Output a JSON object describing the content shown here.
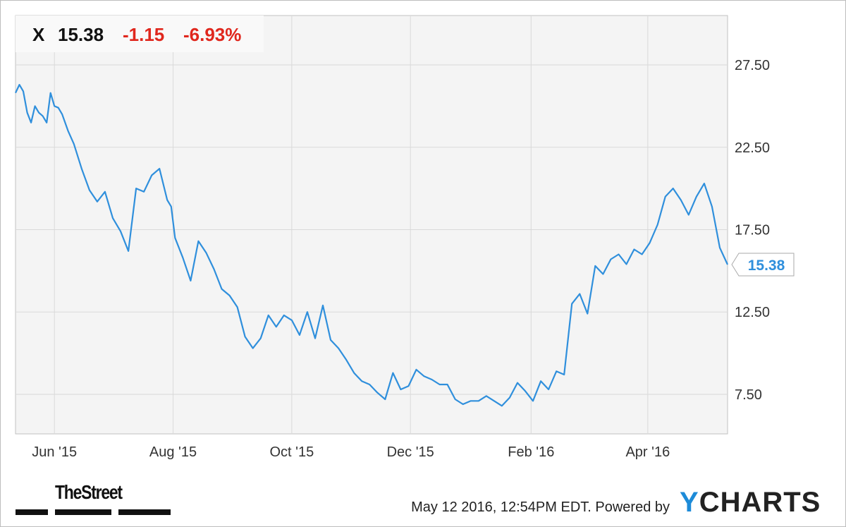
{
  "header": {
    "ticker": "X",
    "price": "15.38",
    "change": "-1.15",
    "change_pct": "-6.93%"
  },
  "chart_data": {
    "type": "line",
    "series": [
      {
        "color": "#2f8fdc",
        "last_value_label": "15.38",
        "x": [
          "2015-05-12",
          "2015-05-14",
          "2015-05-16",
          "2015-05-18",
          "2015-05-20",
          "2015-05-22",
          "2015-05-24",
          "2015-05-26",
          "2015-05-28",
          "2015-05-30",
          "2015-06-01",
          "2015-06-03",
          "2015-06-05",
          "2015-06-08",
          "2015-06-11",
          "2015-06-15",
          "2015-06-19",
          "2015-06-23",
          "2015-06-27",
          "2015-07-01",
          "2015-07-05",
          "2015-07-09",
          "2015-07-13",
          "2015-07-17",
          "2015-07-21",
          "2015-07-25",
          "2015-07-29",
          "2015-07-31",
          "2015-08-02",
          "2015-08-06",
          "2015-08-10",
          "2015-08-14",
          "2015-08-18",
          "2015-08-22",
          "2015-08-26",
          "2015-08-30",
          "2015-09-03",
          "2015-09-07",
          "2015-09-11",
          "2015-09-15",
          "2015-09-19",
          "2015-09-23",
          "2015-09-27",
          "2015-10-01",
          "2015-10-05",
          "2015-10-09",
          "2015-10-13",
          "2015-10-17",
          "2015-10-21",
          "2015-10-25",
          "2015-10-29",
          "2015-11-02",
          "2015-11-06",
          "2015-11-10",
          "2015-11-14",
          "2015-11-18",
          "2015-11-22",
          "2015-11-26",
          "2015-11-30",
          "2015-12-04",
          "2015-12-08",
          "2015-12-12",
          "2015-12-16",
          "2015-12-20",
          "2015-12-24",
          "2015-12-28",
          "2016-01-01",
          "2016-01-05",
          "2016-01-09",
          "2016-01-13",
          "2016-01-17",
          "2016-01-21",
          "2016-01-25",
          "2016-01-29",
          "2016-02-02",
          "2016-02-06",
          "2016-02-10",
          "2016-02-14",
          "2016-02-18",
          "2016-02-22",
          "2016-02-26",
          "2016-03-01",
          "2016-03-05",
          "2016-03-09",
          "2016-03-13",
          "2016-03-17",
          "2016-03-21",
          "2016-03-25",
          "2016-03-29",
          "2016-04-02",
          "2016-04-06",
          "2016-04-10",
          "2016-04-14",
          "2016-04-18",
          "2016-04-22",
          "2016-04-26",
          "2016-04-30",
          "2016-05-04",
          "2016-05-08",
          "2016-05-12"
        ],
        "y": [
          25.8,
          26.3,
          25.9,
          24.6,
          24.0,
          25.0,
          24.6,
          24.4,
          24.0,
          25.8,
          25.0,
          24.9,
          24.5,
          23.5,
          22.7,
          21.2,
          19.9,
          19.2,
          19.8,
          18.2,
          17.4,
          16.2,
          20.0,
          19.8,
          20.8,
          21.2,
          19.3,
          18.9,
          17.0,
          15.8,
          14.4,
          16.8,
          16.1,
          15.1,
          13.9,
          13.5,
          12.8,
          11.0,
          10.3,
          10.9,
          12.3,
          11.6,
          12.3,
          12.0,
          11.1,
          12.5,
          10.9,
          12.9,
          10.8,
          10.3,
          9.6,
          8.8,
          8.3,
          8.1,
          7.6,
          7.2,
          8.8,
          7.8,
          8.0,
          9.0,
          8.6,
          8.4,
          8.1,
          8.1,
          7.2,
          6.9,
          7.1,
          7.1,
          7.4,
          7.1,
          6.8,
          7.3,
          8.2,
          7.7,
          7.1,
          8.3,
          7.8,
          8.9,
          8.7,
          13.0,
          13.6,
          12.4,
          15.3,
          14.8,
          15.7,
          16.0,
          15.4,
          16.3,
          16.0,
          16.7,
          17.8,
          19.5,
          20.0,
          19.3,
          18.4,
          19.5,
          20.3,
          18.9,
          16.4,
          15.38
        ]
      }
    ],
    "x_ticks": [
      "Jun '15",
      "Aug '15",
      "Oct '15",
      "Dec '15",
      "Feb '16",
      "Apr '16"
    ],
    "x_tick_dates": [
      "2015-06-01",
      "2015-08-01",
      "2015-10-01",
      "2015-12-01",
      "2016-02-01",
      "2016-04-01"
    ],
    "y_ticks": [
      7.5,
      12.5,
      17.5,
      22.5,
      27.5
    ],
    "y_tick_labels": [
      "7.50",
      "12.50",
      "17.50",
      "22.50",
      "27.50"
    ],
    "ylim": [
      5.1,
      30.5
    ],
    "xlim": [
      "2015-05-12",
      "2016-05-12"
    ],
    "grid": true,
    "title": "",
    "xlabel": "",
    "ylabel": ""
  },
  "branding": {
    "thestreet": "TheStreet",
    "footer": "May 12 2016, 12:54PM EDT.  Powered by",
    "ycharts_y": "Y",
    "ycharts_rest": "CHARTS"
  }
}
